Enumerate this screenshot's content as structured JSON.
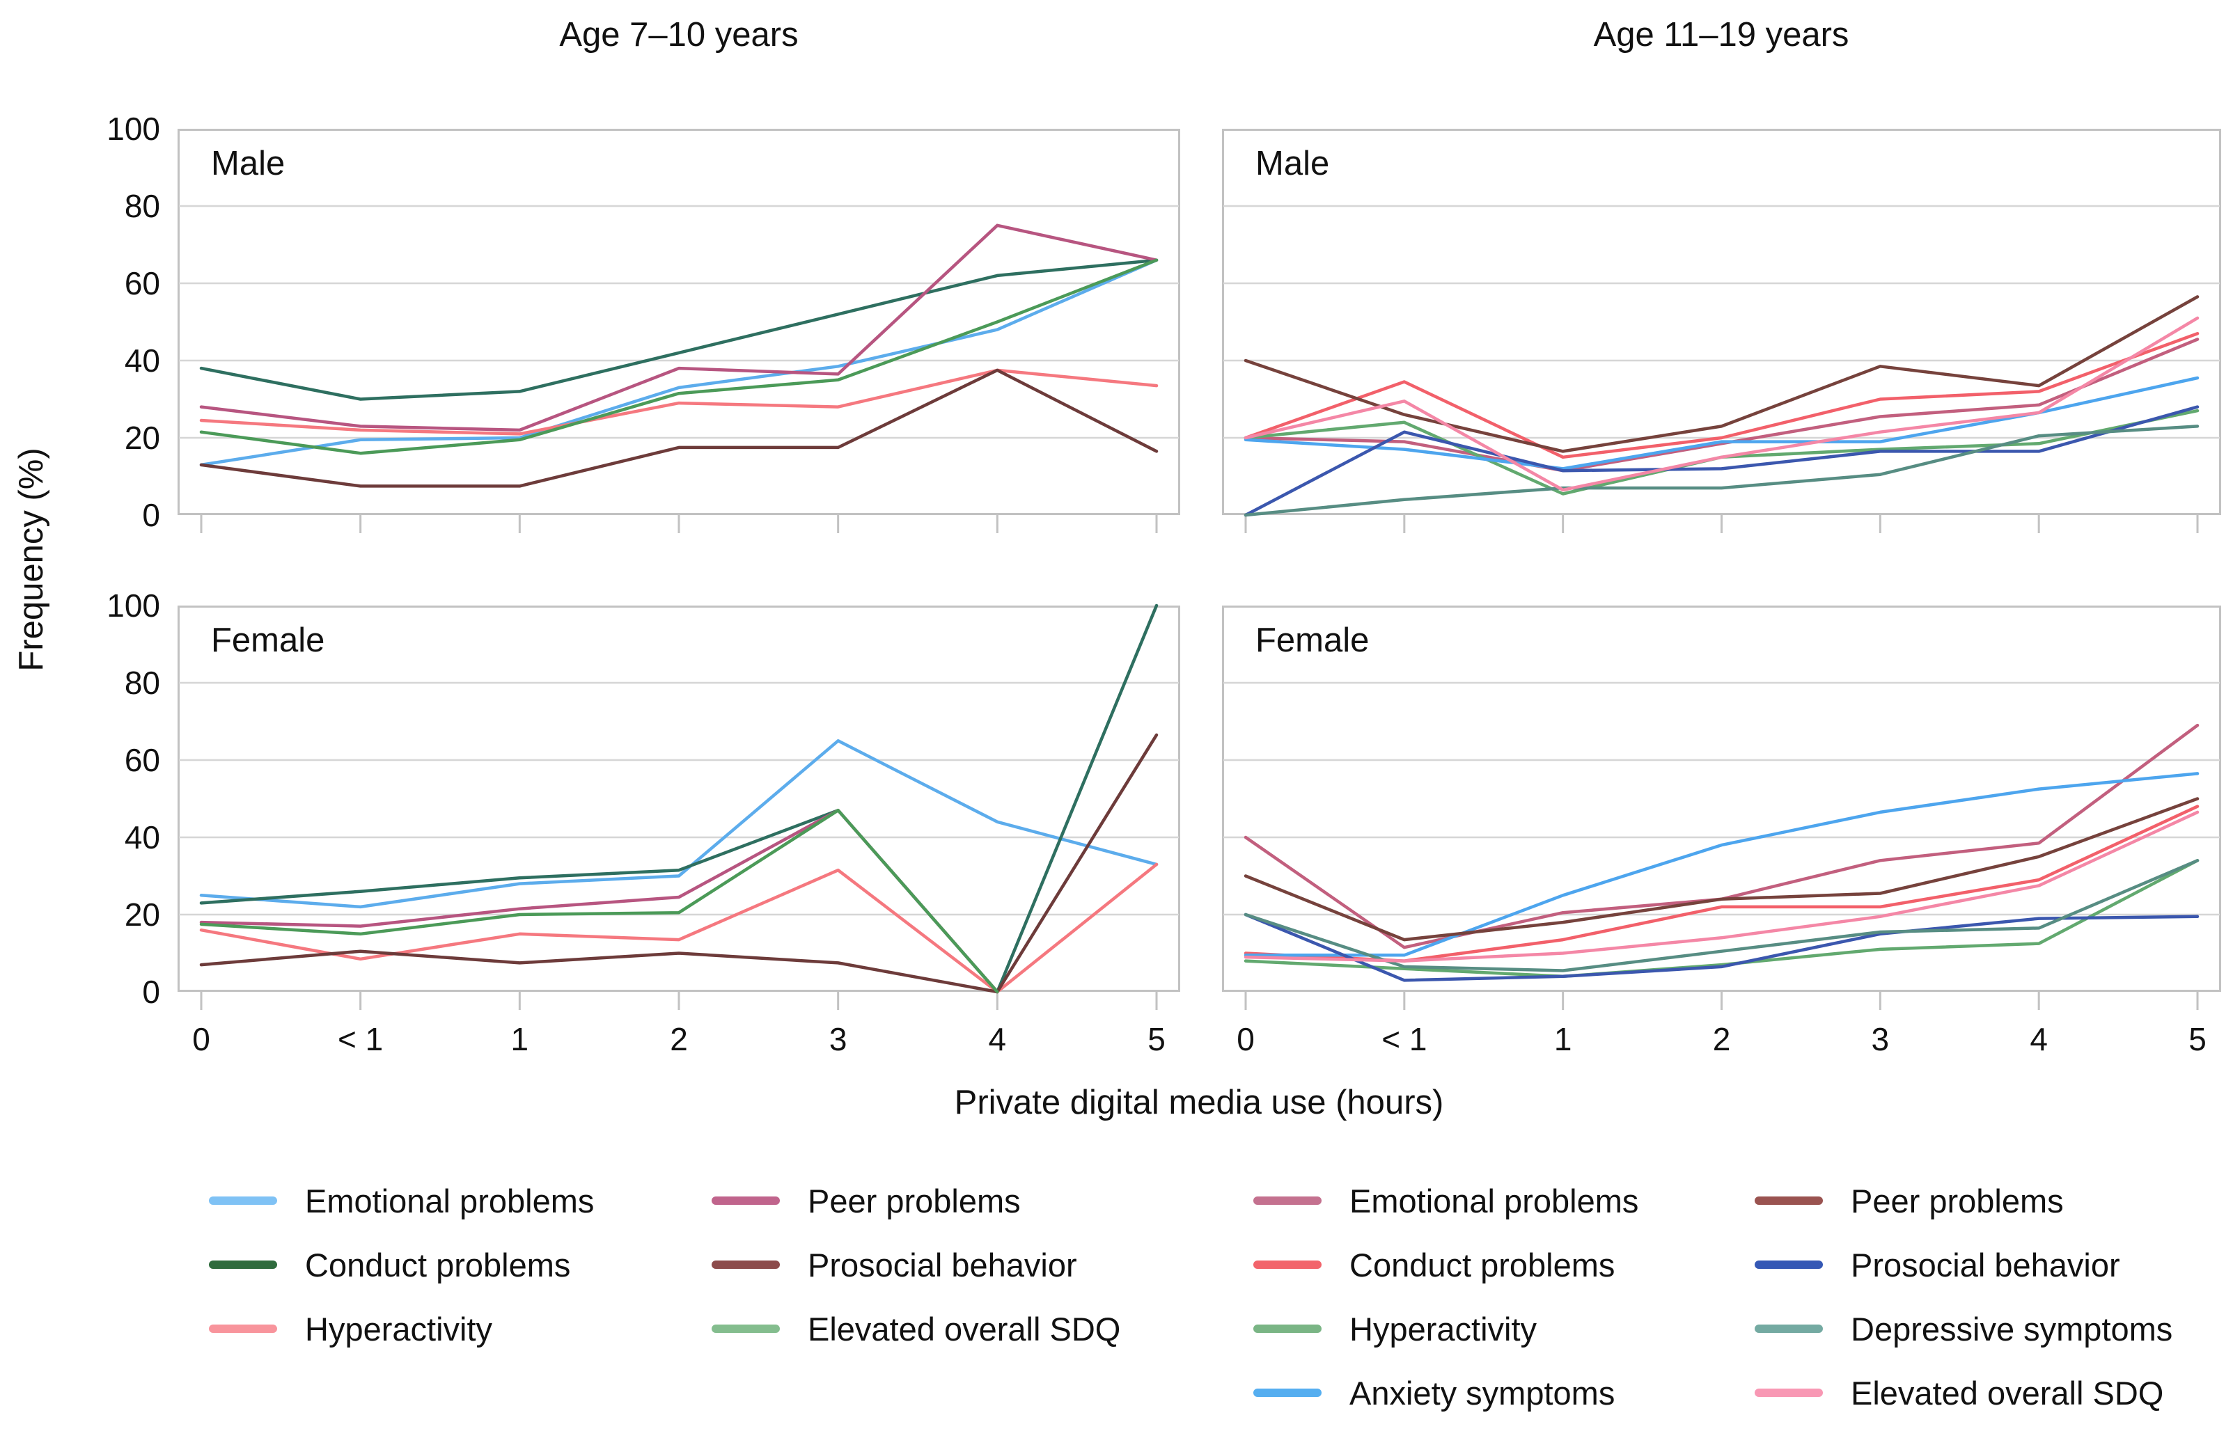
{
  "column_titles": [
    "Age 7–10 years",
    "Age 11–19 years"
  ],
  "axes": {
    "ylabel": "Frequency (%)",
    "xlabel": "Private digital media use (hours)",
    "yticks": [
      100,
      80,
      60,
      40,
      20,
      0
    ],
    "ylim": [
      0,
      100
    ],
    "categories": [
      "0",
      "< 1",
      "1",
      "2",
      "3",
      "4",
      "5"
    ],
    "grid": "horizontal"
  },
  "chart_data": [
    {
      "type": "line",
      "age_group": "Age 7–10 years",
      "panel_label": "Male",
      "categories": [
        "0",
        "< 1",
        "1",
        "2",
        "3",
        "4",
        "5"
      ],
      "series": [
        {
          "name": "Emotional problems",
          "color": "#5cacec",
          "values": [
            13,
            19.5,
            20,
            33,
            38.5,
            48,
            66
          ]
        },
        {
          "name": "Conduct problems",
          "color": "#2e6f60",
          "values": [
            38,
            30,
            32,
            42,
            52,
            62,
            66
          ]
        },
        {
          "name": "Hyperactivity",
          "color": "#f5787f",
          "values": [
            24.5,
            22,
            21,
            29,
            28,
            37.5,
            33.5
          ]
        },
        {
          "name": "Peer problems",
          "color": "#b75580",
          "values": [
            28,
            23,
            22,
            38,
            36.5,
            75,
            66
          ]
        },
        {
          "name": "Prosocial behavior",
          "color": "#6d3b3a",
          "values": [
            13,
            7.5,
            7.5,
            17.5,
            17.5,
            37.5,
            16.5
          ]
        },
        {
          "name": "Elevated overall SDQ",
          "color": "#4b9a58",
          "values": [
            21.5,
            16,
            19.5,
            31.5,
            35,
            50,
            66
          ]
        }
      ]
    },
    {
      "type": "line",
      "age_group": "Age 11–19 years",
      "panel_label": "Male",
      "categories": [
        "0",
        "< 1",
        "1",
        "2",
        "3",
        "4",
        "5"
      ],
      "series": [
        {
          "name": "Emotional problems",
          "color": "#c25f7e",
          "values": [
            20,
            19,
            11.5,
            18.5,
            25.5,
            28.5,
            45.5
          ]
        },
        {
          "name": "Conduct problems",
          "color": "#f2606a",
          "values": [
            20,
            34.5,
            15,
            20,
            30,
            32,
            47
          ]
        },
        {
          "name": "Hyperactivity",
          "color": "#62a96f",
          "values": [
            20,
            24,
            5.5,
            15,
            17,
            18.5,
            27
          ]
        },
        {
          "name": "Anxiety symptoms",
          "color": "#4da5ee",
          "values": [
            19.5,
            17,
            12,
            19,
            19,
            26.5,
            35.5
          ]
        },
        {
          "name": "Peer problems",
          "color": "#76423c",
          "values": [
            40,
            26,
            16.5,
            23,
            38.5,
            33.5,
            56.5
          ]
        },
        {
          "name": "Prosocial behavior",
          "color": "#3b57ae",
          "values": [
            0,
            21.5,
            11.5,
            12,
            16.5,
            16.5,
            28
          ]
        },
        {
          "name": "Depressive symptoms",
          "color": "#578d83",
          "values": [
            0,
            4,
            7,
            7,
            10.5,
            20.5,
            23
          ]
        },
        {
          "name": "Elevated overall SDQ",
          "color": "#f487a6",
          "values": [
            20,
            29.5,
            6.5,
            15,
            21.5,
            26.5,
            51
          ]
        }
      ]
    },
    {
      "type": "line",
      "age_group": "Age 7–10 years",
      "panel_label": "Female",
      "categories": [
        "0",
        "< 1",
        "1",
        "2",
        "3",
        "4",
        "5"
      ],
      "series": [
        {
          "name": "Emotional problems",
          "color": "#5cacec",
          "values": [
            25,
            22,
            28,
            30,
            65,
            44,
            33
          ]
        },
        {
          "name": "Conduct problems",
          "color": "#2e6f60",
          "values": [
            23,
            26,
            29.5,
            31.5,
            47,
            0,
            100
          ]
        },
        {
          "name": "Hyperactivity",
          "color": "#f5787f",
          "values": [
            16,
            8.5,
            15,
            13.5,
            31.5,
            0,
            33
          ]
        },
        {
          "name": "Peer problems",
          "color": "#b75580",
          "values": [
            18,
            17,
            21.5,
            24.5,
            47,
            0,
            null
          ]
        },
        {
          "name": "Prosocial behavior",
          "color": "#6d3b3a",
          "values": [
            7,
            10.5,
            7.5,
            10,
            7.5,
            0,
            66.5
          ]
        },
        {
          "name": "Elevated overall SDQ",
          "color": "#4b9a58",
          "values": [
            17.5,
            15,
            20,
            20.5,
            47,
            0,
            null
          ]
        }
      ]
    },
    {
      "type": "line",
      "age_group": "Age 11–19 years",
      "panel_label": "Female",
      "categories": [
        "0",
        "< 1",
        "1",
        "2",
        "3",
        "4",
        "5"
      ],
      "series": [
        {
          "name": "Emotional problems",
          "color": "#c25f7e",
          "values": [
            40,
            11.5,
            20.5,
            24,
            34,
            38.5,
            69
          ]
        },
        {
          "name": "Conduct problems",
          "color": "#f2606a",
          "values": [
            10,
            8,
            13.5,
            22,
            22,
            29,
            48
          ]
        },
        {
          "name": "Hyperactivity",
          "color": "#62a96f",
          "values": [
            8,
            6,
            4,
            7,
            11,
            12.5,
            34
          ]
        },
        {
          "name": "Anxiety symptoms",
          "color": "#4da5ee",
          "values": [
            9.5,
            9.5,
            25,
            38,
            46.5,
            52.5,
            56.5
          ]
        },
        {
          "name": "Peer problems",
          "color": "#76423c",
          "values": [
            30,
            13.5,
            18,
            24,
            25.5,
            35,
            50
          ]
        },
        {
          "name": "Prosocial behavior",
          "color": "#3b57ae",
          "values": [
            20,
            3,
            4,
            6.5,
            15,
            19,
            19.5
          ]
        },
        {
          "name": "Depressive symptoms",
          "color": "#578d83",
          "values": [
            20,
            6.5,
            5.5,
            10.5,
            15.5,
            16.5,
            34
          ]
        },
        {
          "name": "Elevated overall SDQ",
          "color": "#f487a6",
          "values": [
            9,
            8,
            10,
            14,
            19.5,
            27.5,
            46.5
          ]
        }
      ]
    }
  ],
  "legends": {
    "left": {
      "columns": [
        [
          {
            "label": "Emotional problems",
            "color": "#7fc2f5"
          },
          {
            "label": "Conduct problems",
            "color": "#2f6b3d"
          },
          {
            "label": "Hyperactivity",
            "color": "#f8949c"
          }
        ],
        [
          {
            "label": "Peer problems",
            "color": "#c0648c"
          },
          {
            "label": "Prosocial behavior",
            "color": "#8c4b4b"
          },
          {
            "label": "Elevated overall SDQ",
            "color": "#84bd8e"
          }
        ]
      ]
    },
    "right": {
      "columns": [
        [
          {
            "label": "Emotional problems",
            "color": "#c4718f"
          },
          {
            "label": "Conduct problems",
            "color": "#f2646b"
          },
          {
            "label": "Hyperactivity",
            "color": "#7ab585"
          },
          {
            "label": "Anxiety symptoms",
            "color": "#55aef0"
          }
        ],
        [
          {
            "label": "Peer problems",
            "color": "#9a5350"
          },
          {
            "label": "Prosocial behavior",
            "color": "#3558b5"
          },
          {
            "label": "Depressive symptoms",
            "color": "#74aaa2"
          },
          {
            "label": "Elevated overall SDQ",
            "color": "#f898b4"
          }
        ]
      ]
    }
  }
}
